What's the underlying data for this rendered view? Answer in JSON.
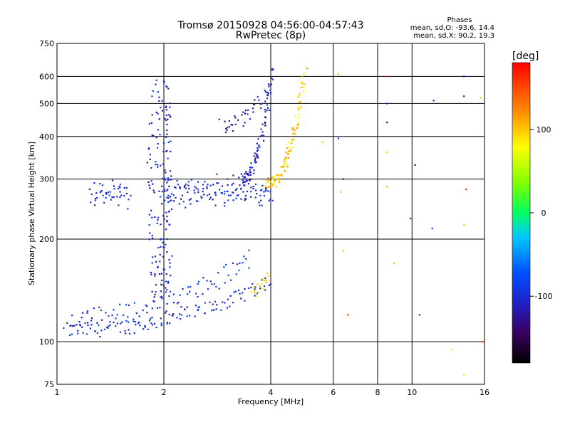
{
  "chart_data": {
    "type": "scatter",
    "title": "Tromsø 20150928 04:56:00-04:57:43",
    "subtitle": "RwPretec (8p)",
    "xlabel": "Frequency [MHz]",
    "ylabel": "Stationary phase Virtual Height [km]",
    "x_scale": "log",
    "y_scale": "log",
    "xlim": [
      1,
      16
    ],
    "ylim": [
      75,
      750
    ],
    "x_ticks": [
      1,
      2,
      4,
      6,
      8,
      10,
      16
    ],
    "x_tick_labels": [
      "1",
      "2",
      "4",
      "6",
      "8",
      "10",
      "16"
    ],
    "y_ticks": [
      75,
      100,
      200,
      300,
      400,
      500,
      600,
      750
    ],
    "y_tick_labels": [
      "75",
      "100",
      "200",
      "300",
      "400",
      "500",
      "600",
      "750"
    ],
    "grid": true,
    "stats": {
      "heading": "Phases",
      "o_line": "mean, sd,O: -93.6, 14.4",
      "x_line": "mean, sd,X:  90.2, 19.3"
    },
    "colorbar": {
      "label": "[deg]",
      "range": [
        -180,
        180
      ],
      "ticks": [
        100,
        0,
        -100
      ],
      "tick_labels": [
        "100",
        "0",
        "-100"
      ]
    },
    "traces": [
      {
        "kind": "curve",
        "f0": 1.05,
        "f1": 4.0,
        "h0": 108,
        "h1": 150,
        "phase": -100,
        "n": 120,
        "spread": 0.05
      },
      {
        "kind": "curve",
        "f0": 1.1,
        "f1": 3.5,
        "h0": 118,
        "h1": 175,
        "phase": -95,
        "n": 90,
        "spread": 0.07
      },
      {
        "kind": "band",
        "f0": 2.0,
        "f1": 4.0,
        "h0": 255,
        "h1": 300,
        "phase": -100,
        "n": 140,
        "spread": 0.04
      },
      {
        "kind": "curve",
        "f0": 3.3,
        "f1": 4.05,
        "h0": 300,
        "h1": 640,
        "phase": -110,
        "n": 90,
        "spread": 0.04
      },
      {
        "kind": "curve",
        "f0": 3.9,
        "f1": 5.0,
        "h0": 290,
        "h1": 620,
        "phase": 100,
        "n": 110,
        "spread": 0.04
      },
      {
        "kind": "vertical",
        "f": 1.95,
        "h0": 130,
        "h1": 560,
        "phase": -105,
        "n": 170,
        "spread": 0.06
      },
      {
        "kind": "band",
        "f0": 1.25,
        "f1": 1.6,
        "h0": 252,
        "h1": 290,
        "phase": -100,
        "n": 45,
        "spread": 0.04
      },
      {
        "kind": "curve",
        "f0": 2.9,
        "f1": 4.0,
        "h0": 430,
        "h1": 560,
        "phase": -120,
        "n": 40,
        "spread": 0.05
      },
      {
        "kind": "curve",
        "f0": 3.5,
        "f1": 3.95,
        "h0": 140,
        "h1": 160,
        "phase": 90,
        "n": 20,
        "spread": 0.04
      }
    ],
    "points": [
      {
        "f": 8.5,
        "h": 600,
        "phase": 160
      },
      {
        "f": 8.5,
        "h": 500,
        "phase": -100
      },
      {
        "f": 8.5,
        "h": 440,
        "phase": -130
      },
      {
        "f": 8.5,
        "h": 360,
        "phase": 100
      },
      {
        "f": 8.5,
        "h": 285,
        "phase": 100
      },
      {
        "f": 8.9,
        "h": 170,
        "phase": 100
      },
      {
        "f": 6.2,
        "h": 610,
        "phase": 40
      },
      {
        "f": 6.2,
        "h": 395,
        "phase": -100
      },
      {
        "f": 6.4,
        "h": 300,
        "phase": -120
      },
      {
        "f": 6.3,
        "h": 275,
        "phase": 40
      },
      {
        "f": 6.4,
        "h": 185,
        "phase": 40
      },
      {
        "f": 6.6,
        "h": 120,
        "phase": 160
      },
      {
        "f": 10.2,
        "h": 330,
        "phase": -110
      },
      {
        "f": 10.5,
        "h": 120,
        "phase": -100
      },
      {
        "f": 9.9,
        "h": 230,
        "phase": -110
      },
      {
        "f": 11.5,
        "h": 510,
        "phase": -110
      },
      {
        "f": 11.4,
        "h": 215,
        "phase": -100
      },
      {
        "f": 14.0,
        "h": 220,
        "phase": 40
      },
      {
        "f": 14.0,
        "h": 525,
        "phase": -120
      },
      {
        "f": 14.0,
        "h": 600,
        "phase": -110
      },
      {
        "f": 14.2,
        "h": 280,
        "phase": 160
      },
      {
        "f": 15.6,
        "h": 520,
        "phase": 40
      },
      {
        "f": 15.8,
        "h": 100,
        "phase": 160
      },
      {
        "f": 13.0,
        "h": 95,
        "phase": 60
      },
      {
        "f": 14.0,
        "h": 80,
        "phase": 90
      },
      {
        "f": 5.6,
        "h": 385,
        "phase": 100
      }
    ]
  }
}
